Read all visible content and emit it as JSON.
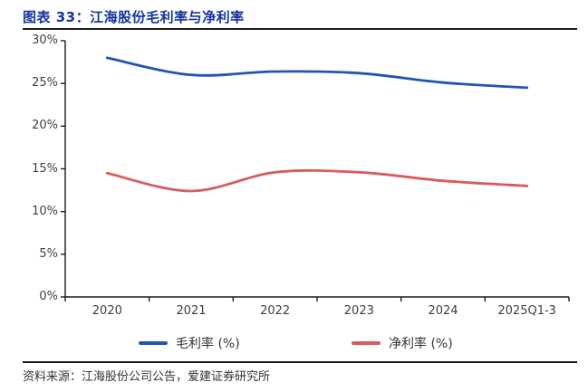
{
  "header": {
    "title": "图表 33：江海股份毛利率与净利率"
  },
  "chart_data": {
    "type": "line",
    "title": "江海股份毛利率与净利率",
    "categories": [
      "2020",
      "2021",
      "2022",
      "2023",
      "2024",
      "2025Q1-3"
    ],
    "series": [
      {
        "name": "毛利率 (%)",
        "values": [
          28.0,
          26.0,
          26.4,
          26.2,
          25.1,
          24.5
        ],
        "color": "#1f56b4"
      },
      {
        "name": "净利率 (%)",
        "values": [
          14.5,
          12.4,
          14.6,
          14.6,
          13.6,
          13.0
        ],
        "color": "#d95c5c"
      }
    ],
    "xlabel": "",
    "ylabel": "",
    "ylim": [
      0,
      30
    ],
    "ytick_step": 5,
    "ytick_labels": [
      "0%",
      "5%",
      "10%",
      "15%",
      "20%",
      "25%",
      "30%"
    ],
    "grid": false,
    "smooth": true,
    "legend_position": "bottom",
    "axis_color": "#1a1a1a"
  },
  "colors": {
    "title": "#1233a2",
    "rule": "#1c1c1c",
    "gross_line": "#1f56b4",
    "net_line": "#d95c5c"
  },
  "footer": {
    "source": "资料来源：江海股份公司公告，爱建证券研究所"
  }
}
